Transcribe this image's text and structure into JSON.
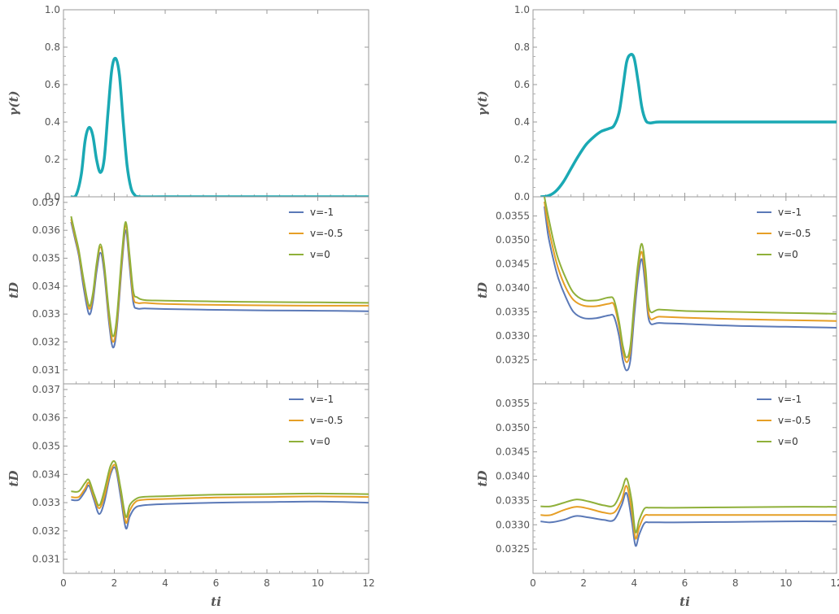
{
  "chart_data": [
    {
      "id": "left-top",
      "type": "line",
      "xlim": [
        0,
        12
      ],
      "ylim": [
        0,
        1
      ],
      "xticks": [
        0,
        2,
        4,
        6,
        8,
        10,
        12
      ],
      "yticks": [
        0.0,
        0.2,
        0.4,
        0.6,
        0.8,
        1.0
      ],
      "ytick_labels": [
        "0.0",
        "0.2",
        "0.4",
        "0.6",
        "0.8",
        "1.0"
      ],
      "xlabel": "",
      "ylabel": "γ(t)",
      "series": [
        {
          "color": "#1aa9b4",
          "x": [
            0.3,
            0.5,
            0.7,
            0.85,
            1.0,
            1.15,
            1.3,
            1.45,
            1.6,
            1.75,
            1.9,
            2.05,
            2.2,
            2.35,
            2.5,
            2.65,
            2.8,
            3.0,
            4,
            6,
            8,
            10,
            12
          ],
          "y": [
            0,
            0.01,
            0.12,
            0.3,
            0.37,
            0.33,
            0.2,
            0.13,
            0.2,
            0.45,
            0.68,
            0.74,
            0.65,
            0.4,
            0.17,
            0.05,
            0.01,
            0,
            0,
            0,
            0,
            0,
            0
          ]
        }
      ]
    },
    {
      "id": "left-mid",
      "type": "line",
      "xlim": [
        0,
        12
      ],
      "ylim": [
        0.0305,
        0.0372
      ],
      "xticks": [
        0,
        2,
        4,
        6,
        8,
        10,
        12
      ],
      "yticks": [
        0.031,
        0.032,
        0.033,
        0.034,
        0.035,
        0.036,
        0.037
      ],
      "ytick_labels": [
        "0.031",
        "0.032",
        "0.033",
        "0.034",
        "0.035",
        "0.036",
        "0.037"
      ],
      "xlabel": "",
      "ylabel": "tD",
      "series": [
        {
          "name": "v=-1",
          "color": "#5b79b7",
          "x": [
            0.3,
            0.45,
            0.6,
            0.8,
            1.0,
            1.15,
            1.3,
            1.45,
            1.6,
            1.8,
            1.95,
            2.1,
            2.3,
            2.45,
            2.6,
            2.75,
            2.9,
            3.2,
            4,
            6,
            8,
            10,
            12
          ],
          "y": [
            0.0363,
            0.0357,
            0.0351,
            0.0339,
            0.033,
            0.0334,
            0.0345,
            0.0352,
            0.0345,
            0.0326,
            0.0318,
            0.0325,
            0.0348,
            0.036,
            0.0347,
            0.0334,
            0.0332,
            0.0332,
            0.03318,
            0.03315,
            0.03313,
            0.03312,
            0.0331
          ]
        },
        {
          "name": "v=-0.5",
          "color": "#e69f26",
          "x": [
            0.3,
            0.45,
            0.6,
            0.8,
            1.0,
            1.15,
            1.3,
            1.45,
            1.6,
            1.8,
            1.95,
            2.1,
            2.3,
            2.45,
            2.6,
            2.75,
            2.9,
            3.2,
            4,
            6,
            8,
            10,
            12
          ],
          "y": [
            0.0364,
            0.0358,
            0.0352,
            0.0341,
            0.0332,
            0.0336,
            0.0347,
            0.0354,
            0.0347,
            0.0328,
            0.032,
            0.0327,
            0.035,
            0.0362,
            0.0349,
            0.0336,
            0.0334,
            0.0334,
            0.03336,
            0.03333,
            0.03331,
            0.0333,
            0.0333
          ]
        },
        {
          "name": "v=0",
          "color": "#8fb03a",
          "x": [
            0.3,
            0.45,
            0.6,
            0.8,
            1.0,
            1.15,
            1.3,
            1.45,
            1.6,
            1.8,
            1.95,
            2.1,
            2.3,
            2.45,
            2.6,
            2.75,
            2.9,
            3.2,
            4,
            6,
            8,
            10,
            12
          ],
          "y": [
            0.0365,
            0.0359,
            0.0353,
            0.0342,
            0.0333,
            0.0337,
            0.0348,
            0.0355,
            0.0348,
            0.033,
            0.0322,
            0.0329,
            0.0352,
            0.0363,
            0.0351,
            0.0338,
            0.0336,
            0.0335,
            0.03348,
            0.03345,
            0.03343,
            0.03342,
            0.0334
          ]
        }
      ]
    },
    {
      "id": "left-bot",
      "type": "line",
      "xlim": [
        0,
        12
      ],
      "ylim": [
        0.0305,
        0.0372
      ],
      "xticks": [
        0,
        2,
        4,
        6,
        8,
        10,
        12
      ],
      "yticks": [
        0.031,
        0.032,
        0.033,
        0.034,
        0.035,
        0.036,
        0.037
      ],
      "ytick_labels": [
        "0.031",
        "0.032",
        "0.033",
        "0.034",
        "0.035",
        "0.036",
        "0.037"
      ],
      "xlabel": "ti",
      "ylabel": "tD",
      "series": [
        {
          "name": "v=-1",
          "color": "#5b79b7",
          "x": [
            0.3,
            0.6,
            0.85,
            1.0,
            1.2,
            1.4,
            1.6,
            1.85,
            2.05,
            2.25,
            2.45,
            2.6,
            2.8,
            3.1,
            4,
            6,
            8,
            10,
            12
          ],
          "y": [
            0.0331,
            0.0331,
            0.0334,
            0.0336,
            0.0331,
            0.0326,
            0.033,
            0.034,
            0.0342,
            0.0332,
            0.0321,
            0.0325,
            0.0328,
            0.0329,
            0.03295,
            0.033,
            0.03302,
            0.03304,
            0.033
          ]
        },
        {
          "name": "v=-0.5",
          "color": "#e69f26",
          "x": [
            0.3,
            0.6,
            0.85,
            1.0,
            1.2,
            1.4,
            1.6,
            1.85,
            2.05,
            2.25,
            2.45,
            2.6,
            2.8,
            3.1,
            4,
            6,
            8,
            10,
            12
          ],
          "y": [
            0.0332,
            0.0332,
            0.0335,
            0.0337,
            0.0332,
            0.0328,
            0.0332,
            0.0341,
            0.0343,
            0.0334,
            0.0323,
            0.0327,
            0.033,
            0.0331,
            0.03313,
            0.03318,
            0.0332,
            0.03322,
            0.0332
          ]
        },
        {
          "name": "v=0",
          "color": "#8fb03a",
          "x": [
            0.3,
            0.6,
            0.85,
            1.0,
            1.2,
            1.4,
            1.6,
            1.85,
            2.05,
            2.25,
            2.45,
            2.6,
            2.8,
            3.1,
            4,
            6,
            8,
            10,
            12
          ],
          "y": [
            0.0334,
            0.0334,
            0.0337,
            0.0338,
            0.0333,
            0.0329,
            0.0334,
            0.0343,
            0.0344,
            0.0335,
            0.0325,
            0.0329,
            0.0331,
            0.0332,
            0.03323,
            0.03328,
            0.0333,
            0.03332,
            0.0333
          ]
        }
      ]
    },
    {
      "id": "right-top",
      "type": "line",
      "xlim": [
        0,
        12
      ],
      "ylim": [
        0,
        1
      ],
      "xticks": [
        0,
        2,
        4,
        6,
        8,
        10,
        12
      ],
      "yticks": [
        0.0,
        0.2,
        0.4,
        0.6,
        0.8,
        1.0
      ],
      "ytick_labels": [
        "0.0",
        "0.2",
        "0.4",
        "0.6",
        "0.8",
        "1.0"
      ],
      "xlabel": "",
      "ylabel": "γ(t)",
      "series": [
        {
          "color": "#1aa9b4",
          "x": [
            0.3,
            0.6,
            0.9,
            1.2,
            1.5,
            1.8,
            2.1,
            2.4,
            2.7,
            3.0,
            3.2,
            3.4,
            3.55,
            3.7,
            3.85,
            4.0,
            4.15,
            4.3,
            4.45,
            4.6,
            4.8,
            5.0,
            6,
            8,
            10,
            12
          ],
          "y": [
            0,
            0.005,
            0.03,
            0.08,
            0.15,
            0.22,
            0.28,
            0.32,
            0.35,
            0.365,
            0.38,
            0.45,
            0.58,
            0.72,
            0.76,
            0.74,
            0.62,
            0.48,
            0.41,
            0.395,
            0.398,
            0.4,
            0.4,
            0.4,
            0.4,
            0.4
          ]
        }
      ]
    },
    {
      "id": "right-mid",
      "type": "line",
      "xlim": [
        0,
        12
      ],
      "ylim": [
        0.032,
        0.0359
      ],
      "xticks": [
        0,
        2,
        4,
        6,
        8,
        10,
        12
      ],
      "yticks": [
        0.0325,
        0.033,
        0.0335,
        0.034,
        0.0345,
        0.035,
        0.0355
      ],
      "ytick_labels": [
        "0.0325",
        "0.0330",
        "0.0335",
        "0.0340",
        "0.0345",
        "0.0350",
        "0.0355"
      ],
      "xlabel": "",
      "ylabel": "tD",
      "series": [
        {
          "name": "v=-1",
          "color": "#5b79b7",
          "x": [
            0.45,
            0.6,
            0.8,
            1.0,
            1.3,
            1.6,
            2.0,
            2.5,
            3.0,
            3.2,
            3.4,
            3.55,
            3.7,
            3.85,
            4.0,
            4.15,
            4.3,
            4.45,
            4.6,
            5.0,
            6,
            8,
            10,
            12
          ],
          "y": [
            0.0357,
            0.0351,
            0.0346,
            0.0342,
            0.0338,
            0.0335,
            0.03337,
            0.03337,
            0.03343,
            0.0334,
            0.033,
            0.0325,
            0.03228,
            0.0325,
            0.0334,
            0.0342,
            0.0346,
            0.034,
            0.0333,
            0.03327,
            0.03325,
            0.03321,
            0.03319,
            0.03317
          ]
        },
        {
          "name": "v=-0.5",
          "color": "#e69f26",
          "x": [
            0.45,
            0.6,
            0.8,
            1.0,
            1.3,
            1.6,
            2.0,
            2.5,
            3.0,
            3.2,
            3.4,
            3.55,
            3.7,
            3.85,
            4.0,
            4.15,
            4.3,
            4.45,
            4.6,
            5.0,
            6,
            8,
            10,
            12
          ],
          "y": [
            0.0358,
            0.0353,
            0.0348,
            0.0344,
            0.034,
            0.03375,
            0.03363,
            0.03362,
            0.03367,
            0.03365,
            0.0332,
            0.0327,
            0.03245,
            0.0327,
            0.0336,
            0.0344,
            0.03475,
            0.0342,
            0.0334,
            0.0334,
            0.03338,
            0.03335,
            0.03333,
            0.03331
          ]
        },
        {
          "name": "v=0",
          "color": "#8fb03a",
          "x": [
            0.45,
            0.6,
            0.8,
            1.0,
            1.3,
            1.6,
            2.0,
            2.5,
            3.0,
            3.2,
            3.4,
            3.55,
            3.7,
            3.85,
            4.0,
            4.15,
            4.3,
            4.45,
            4.6,
            5.0,
            6,
            8,
            10,
            12
          ],
          "y": [
            0.0359,
            0.0355,
            0.035,
            0.0346,
            0.0342,
            0.0339,
            0.03375,
            0.03374,
            0.0338,
            0.03375,
            0.0333,
            0.0328,
            0.03255,
            0.0328,
            0.0337,
            0.0345,
            0.03492,
            0.0344,
            0.03355,
            0.03355,
            0.03352,
            0.0335,
            0.03348,
            0.03346
          ]
        }
      ]
    },
    {
      "id": "right-bot",
      "type": "line",
      "xlim": [
        0,
        12
      ],
      "ylim": [
        0.032,
        0.0359
      ],
      "xticks": [
        0,
        2,
        4,
        6,
        8,
        10,
        12
      ],
      "yticks": [
        0.0325,
        0.033,
        0.0335,
        0.034,
        0.0345,
        0.035,
        0.0355
      ],
      "ytick_labels": [
        "0.0325",
        "0.0330",
        "0.0335",
        "0.0340",
        "0.0345",
        "0.0350",
        "0.0355"
      ],
      "xlabel": "ti",
      "ylabel": "tD",
      "series": [
        {
          "name": "v=-1",
          "color": "#5b79b7",
          "x": [
            0.3,
            0.7,
            1.2,
            1.7,
            2.2,
            2.8,
            3.2,
            3.5,
            3.7,
            3.9,
            4.05,
            4.2,
            4.4,
            4.6,
            5.0,
            6,
            8,
            10,
            12
          ],
          "y": [
            0.03307,
            0.03305,
            0.0331,
            0.03318,
            0.03315,
            0.0331,
            0.0331,
            0.0334,
            0.03365,
            0.0331,
            0.03257,
            0.0328,
            0.03303,
            0.03305,
            0.03305,
            0.03305,
            0.03306,
            0.03307,
            0.03307
          ]
        },
        {
          "name": "v=-0.5",
          "color": "#e69f26",
          "x": [
            0.3,
            0.7,
            1.2,
            1.7,
            2.2,
            2.8,
            3.2,
            3.5,
            3.7,
            3.9,
            4.05,
            4.2,
            4.4,
            4.6,
            5.0,
            6,
            8,
            10,
            12
          ],
          "y": [
            0.0332,
            0.0332,
            0.0333,
            0.03337,
            0.03333,
            0.03325,
            0.03325,
            0.0335,
            0.0338,
            0.0333,
            0.03272,
            0.03295,
            0.03318,
            0.0332,
            0.0332,
            0.0332,
            0.0332,
            0.0332,
            0.0332
          ]
        },
        {
          "name": "v=0",
          "color": "#8fb03a",
          "x": [
            0.3,
            0.7,
            1.2,
            1.7,
            2.2,
            2.8,
            3.2,
            3.5,
            3.7,
            3.9,
            4.05,
            4.2,
            4.4,
            4.6,
            5.0,
            6,
            8,
            10,
            12
          ],
          "y": [
            0.03338,
            0.03338,
            0.03345,
            0.03352,
            0.03348,
            0.0334,
            0.0334,
            0.0337,
            0.03395,
            0.0335,
            0.03285,
            0.0331,
            0.03333,
            0.03335,
            0.03335,
            0.03335,
            0.03336,
            0.03337,
            0.03337
          ]
        }
      ]
    }
  ],
  "legend": [
    "v=-1",
    "v=-0.5",
    "v=0"
  ],
  "xtick_labels": [
    "0",
    "2",
    "4",
    "6",
    "8",
    "10",
    "12"
  ]
}
